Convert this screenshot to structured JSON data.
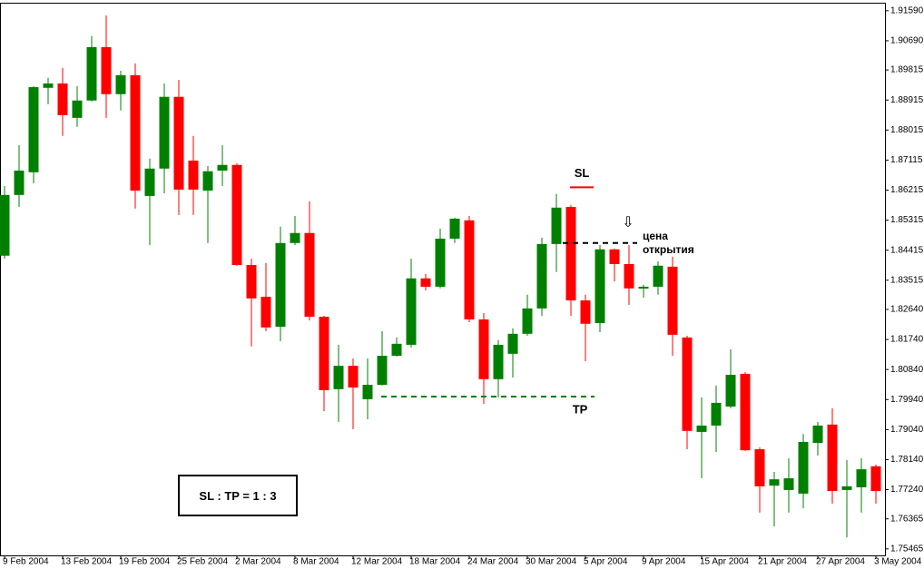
{
  "chart_data": {
    "type": "candlestick",
    "categories": [
      "9 Feb 2004",
      null,
      null,
      null,
      "13 Feb 2004",
      null,
      null,
      null,
      "19 Feb 2004",
      null,
      null,
      null,
      "25 Feb 2004",
      null,
      null,
      null,
      "2 Mar 2004",
      null,
      null,
      null,
      "8 Mar 2004",
      null,
      null,
      null,
      "12 Mar 2004",
      null,
      null,
      null,
      "18 Mar 2004",
      null,
      null,
      null,
      "24 Mar 2004",
      null,
      null,
      null,
      "30 Mar 2004",
      null,
      null,
      null,
      "5 Apr 2004",
      null,
      null,
      null,
      "9 Apr 2004",
      null,
      null,
      null,
      "15 Apr 2004",
      null,
      null,
      null,
      "21 Apr 2004",
      null,
      null,
      null,
      "27 Apr 2004",
      null,
      null,
      null,
      "3 May 2004"
    ],
    "open": [
      1.8425,
      1.8607,
      1.8675,
      1.8928,
      1.8941,
      1.8838,
      1.889,
      1.905,
      1.8909,
      1.8966,
      1.8604,
      1.8686,
      1.8901,
      1.871,
      1.862,
      1.868,
      1.8697,
      1.8397,
      1.8302,
      1.8212,
      1.8463,
      1.8493,
      1.8242,
      1.8025,
      1.8095,
      1.7995,
      1.8038,
      1.8125,
      1.8158,
      1.8357,
      1.8332,
      1.8476,
      1.8531,
      1.8234,
      1.8055,
      1.8131,
      1.8191,
      1.8267,
      1.846,
      1.8571,
      1.8291,
      1.8223,
      1.8444,
      1.84,
      1.8327,
      1.8332,
      1.8392,
      1.818,
      1.7897,
      1.7916,
      1.7973,
      1.8071,
      1.7845,
      1.7736,
      1.7723,
      1.7712,
      1.7864,
      1.7919,
      1.7723,
      1.7731,
      1.7794
    ],
    "high": [
      1.8634,
      1.8756,
      1.8933,
      1.8958,
      1.8988,
      1.8933,
      1.9083,
      1.9145,
      1.8979,
      1.9001,
      1.8716,
      1.8941,
      1.8952,
      1.8784,
      1.8694,
      1.8756,
      1.8702,
      1.8416,
      1.8403,
      1.8512,
      1.8544,
      1.8588,
      1.8245,
      1.8158,
      1.8117,
      1.8117,
      1.8199,
      1.818,
      1.8416,
      1.837,
      1.8506,
      1.8539,
      1.8544,
      1.8253,
      1.8172,
      1.8207,
      1.8308,
      1.8479,
      1.861,
      1.8577,
      1.8308,
      1.8457,
      1.8446,
      1.8457,
      1.8338,
      1.8408,
      1.8422,
      1.8185,
      1.8,
      1.8036,
      1.8144,
      1.8076,
      1.7851,
      1.7777,
      1.7818,
      1.7891,
      1.7927,
      1.7968,
      1.7813,
      1.7818,
      1.7799
    ],
    "low": [
      1.8416,
      1.8571,
      1.8642,
      1.8879,
      1.8784,
      1.8811,
      1.8887,
      1.8838,
      1.886,
      1.8566,
      1.8457,
      1.8612,
      1.8547,
      1.8547,
      1.8463,
      1.8634,
      1.8395,
      1.8153,
      1.8199,
      1.8169,
      1.8457,
      1.8231,
      1.7959,
      1.7927,
      1.7905,
      1.7935,
      1.8036,
      1.8123,
      1.815,
      1.8321,
      1.8327,
      1.8463,
      1.8226,
      1.7981,
      1.8,
      1.806,
      1.8185,
      1.8245,
      1.8376,
      1.8245,
      1.8109,
      1.8196,
      1.8348,
      1.8278,
      1.8299,
      1.8308,
      1.8125,
      1.7845,
      1.7758,
      1.7837,
      1.7968,
      1.784,
      1.7655,
      1.7614,
      1.7655,
      1.7668,
      1.7826,
      1.7682,
      1.7581,
      1.7655,
      1.7682
    ],
    "close": [
      1.8607,
      1.868,
      1.893,
      1.8941,
      1.8846,
      1.889,
      1.905,
      1.8909,
      1.8966,
      1.862,
      1.8686,
      1.8901,
      1.8623,
      1.8623,
      1.8678,
      1.8697,
      1.8397,
      1.8297,
      1.821,
      1.8463,
      1.8493,
      1.8242,
      1.8022,
      1.8095,
      1.803,
      1.8038,
      1.8125,
      1.8161,
      1.8357,
      1.8332,
      1.8476,
      1.8536,
      1.8234,
      1.8055,
      1.8158,
      1.8191,
      1.8267,
      1.846,
      1.8569,
      1.8291,
      1.8221,
      1.8444,
      1.84,
      1.8327,
      1.8332,
      1.8395,
      1.8188,
      1.79,
      1.7916,
      1.7984,
      1.8068,
      1.7842,
      1.7734,
      1.7755,
      1.7758,
      1.7867,
      1.7916,
      1.772,
      1.7734,
      1.7785,
      1.772
    ],
    "up_color": "#008000",
    "down_color": "#ff0000",
    "ylim": [
      1.7527,
      1.9183
    ],
    "yticks": [
      {
        "value": 1.9159,
        "label": "1.91590"
      },
      {
        "value": 1.9069,
        "label": "1.90690"
      },
      {
        "value": 1.89815,
        "label": "1.89815"
      },
      {
        "value": 1.88915,
        "label": "1.88915"
      },
      {
        "value": 1.88015,
        "label": "1.88015"
      },
      {
        "value": 1.87115,
        "label": "1.87115"
      },
      {
        "value": 1.86215,
        "label": "1.86215"
      },
      {
        "value": 1.85315,
        "label": "1.85315"
      },
      {
        "value": 1.84415,
        "label": "1.84415"
      },
      {
        "value": 1.83515,
        "label": "1.83515"
      },
      {
        "value": 1.8264,
        "label": "1.82640"
      },
      {
        "value": 1.8174,
        "label": "1.81740"
      },
      {
        "value": 1.8084,
        "label": "1.80840"
      },
      {
        "value": 1.7994,
        "label": "1.79940"
      },
      {
        "value": 1.7904,
        "label": "1.79040"
      },
      {
        "value": 1.7814,
        "label": "1.78140"
      },
      {
        "value": 1.7724,
        "label": "1.77240"
      },
      {
        "value": 1.76365,
        "label": "1.76365"
      },
      {
        "value": 1.75465,
        "label": "1.75465"
      }
    ],
    "levels": [
      {
        "label": "SL",
        "value": 1.863,
        "color": "#ff0000"
      },
      {
        "label": "TP",
        "value": 1.8003,
        "color": "#008000"
      },
      {
        "label": "цена открытия",
        "value": 1.8463,
        "color": "#000000"
      }
    ],
    "ratio_note": "SL : TP = 1 : 3"
  }
}
